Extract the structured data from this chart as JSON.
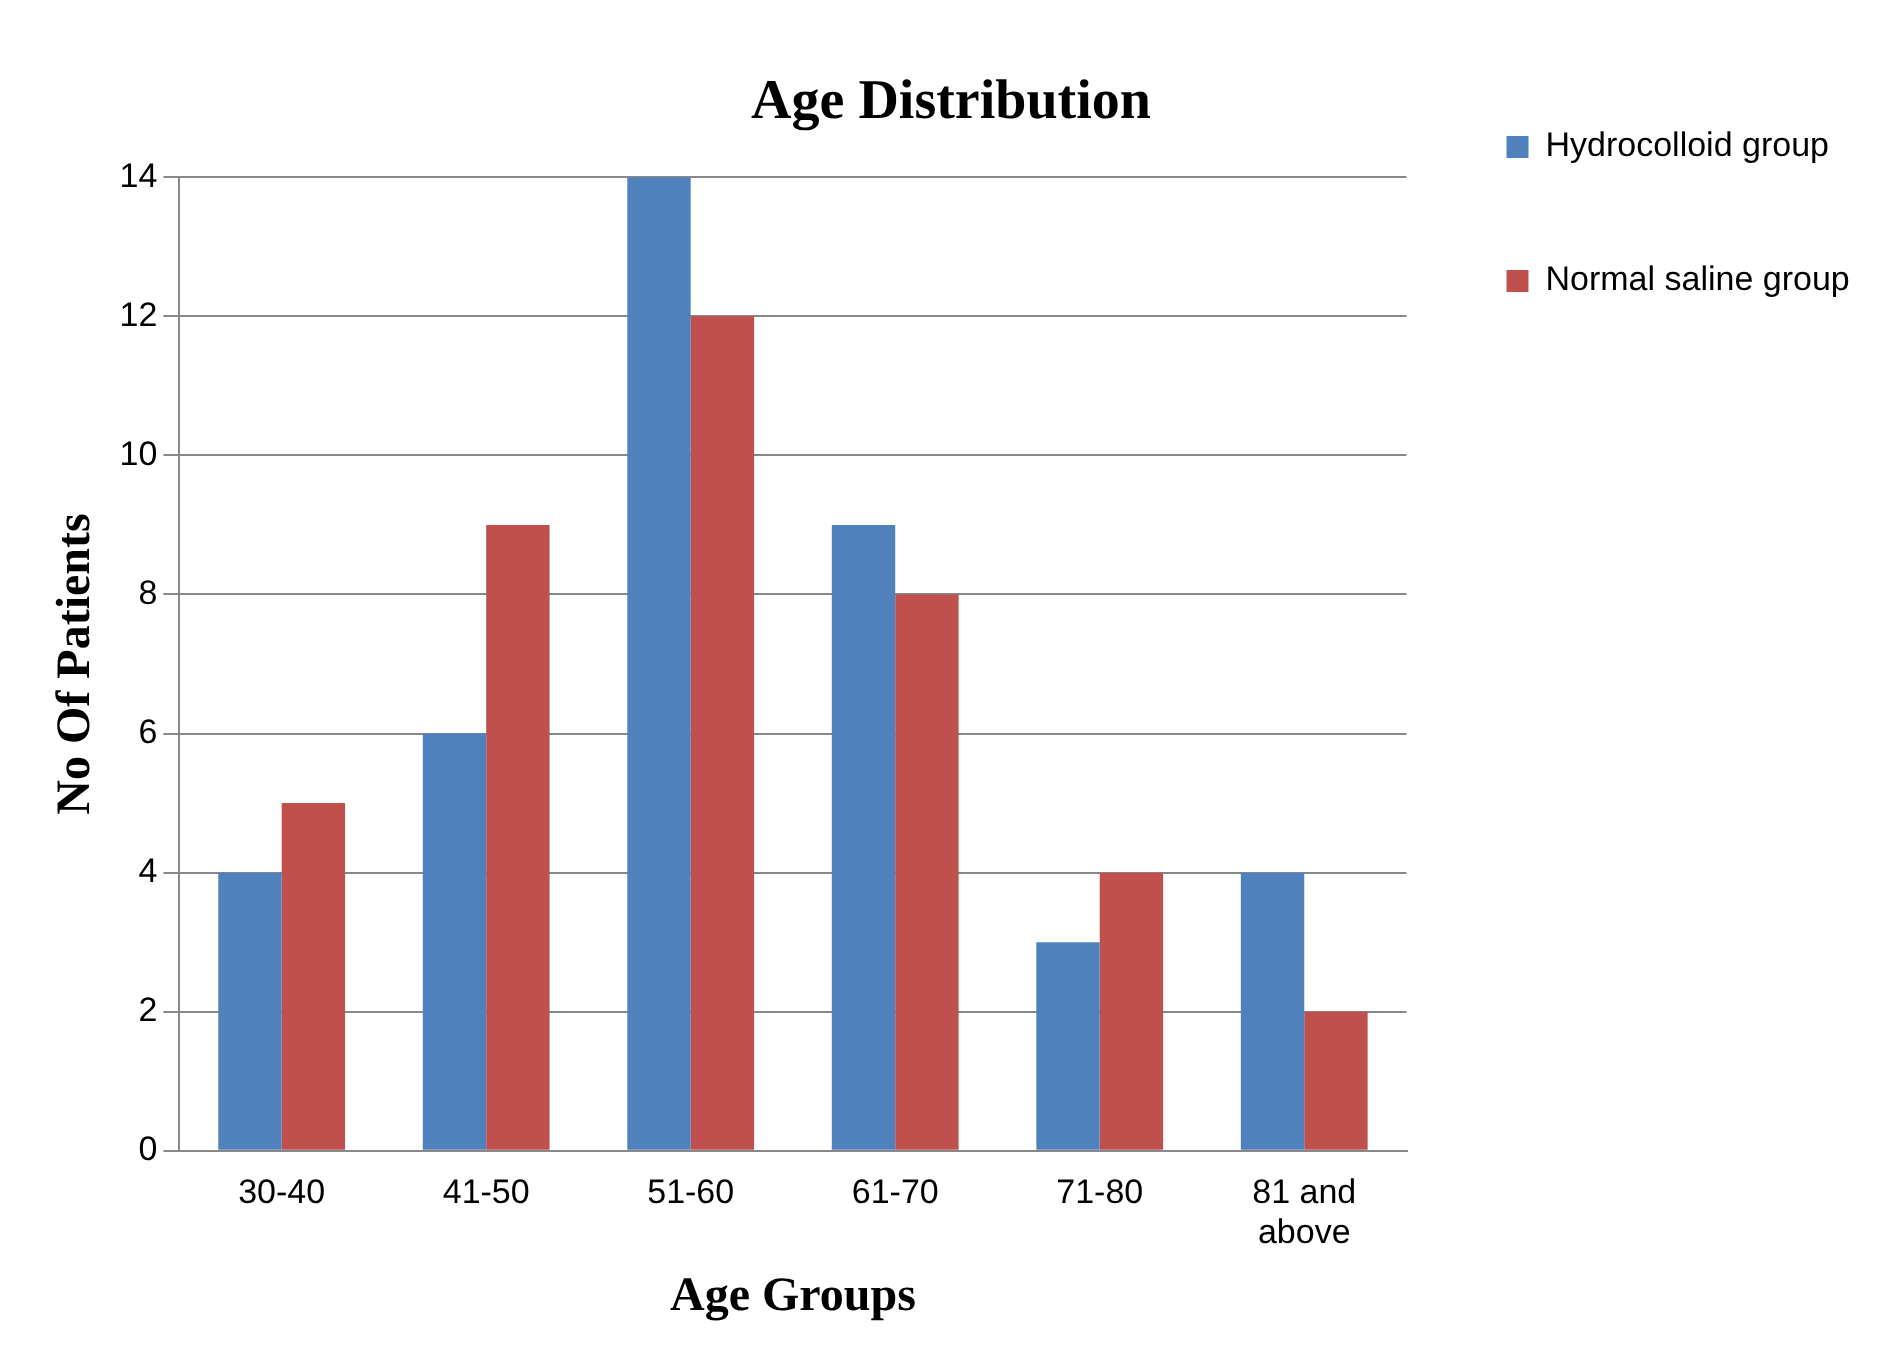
{
  "chart_data": {
    "type": "bar",
    "title": "Age Distribution",
    "xlabel": "Age Groups",
    "ylabel": "No Of Patients",
    "categories": [
      "30-40",
      "41-50",
      "51-60",
      "61-70",
      "71-80",
      "81 and above"
    ],
    "series": [
      {
        "name": "Hydrocolloid group",
        "color": "#4f81bd",
        "values": [
          4,
          6,
          14,
          9,
          3,
          4
        ]
      },
      {
        "name": "Normal saline group",
        "color": "#c0504d",
        "values": [
          5,
          9,
          12,
          8,
          4,
          2
        ]
      }
    ],
    "ylim": [
      0,
      14
    ],
    "yticks": [
      0,
      2,
      4,
      6,
      8,
      10,
      12,
      14
    ],
    "grid": "y",
    "legend": "right"
  }
}
